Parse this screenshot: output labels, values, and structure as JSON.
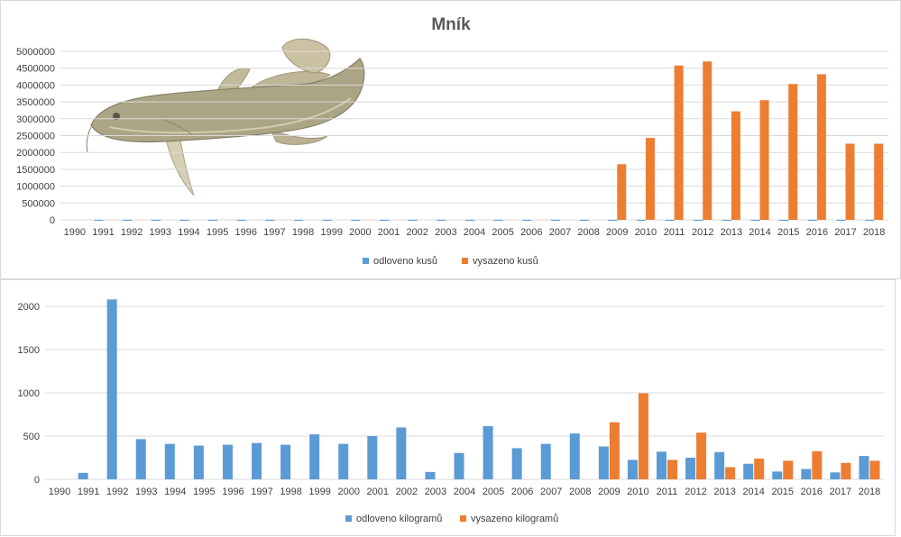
{
  "colors": {
    "odloveno": "#5b9bd5",
    "vysazeno": "#ed7d31",
    "grid": "#d9d9d9",
    "text": "#404040"
  },
  "fish_image": "burbot-fish-illustration",
  "chart_data": [
    {
      "type": "bar",
      "title": "Mník",
      "categories": [
        "1990",
        "1991",
        "1992",
        "1993",
        "1994",
        "1995",
        "1996",
        "1997",
        "1998",
        "1999",
        "2000",
        "2001",
        "2002",
        "2003",
        "2004",
        "2005",
        "2006",
        "2007",
        "2008",
        "2009",
        "2010",
        "2011",
        "2012",
        "2013",
        "2014",
        "2015",
        "2016",
        "2017",
        "2018"
      ],
      "series": [
        {
          "name": "odloveno kusů",
          "values": [
            0,
            15,
            15,
            15,
            15,
            15,
            15,
            15,
            15,
            15,
            15,
            15,
            15,
            15,
            15,
            15,
            15,
            15,
            15,
            15,
            15,
            15,
            15,
            15,
            15,
            15,
            15,
            15,
            15
          ]
        },
        {
          "name": "vysazeno kusů",
          "values": [
            0,
            0,
            0,
            0,
            0,
            0,
            0,
            0,
            0,
            0,
            0,
            0,
            0,
            0,
            0,
            0,
            0,
            0,
            0,
            1650000,
            2430000,
            4580000,
            4700000,
            3220000,
            3550000,
            4030000,
            4320000,
            2260000,
            2260000
          ]
        }
      ],
      "yticks": [
        "0",
        "500000",
        "1000000",
        "1500000",
        "2000000",
        "2500000",
        "3000000",
        "3500000",
        "4000000",
        "4500000",
        "5000000"
      ],
      "ylim": [
        0,
        5000000
      ],
      "grid": true,
      "legend": "bottom"
    },
    {
      "type": "bar",
      "title": "",
      "categories": [
        "1990",
        "1991",
        "1992",
        "1993",
        "1994",
        "1995",
        "1996",
        "1997",
        "1998",
        "1999",
        "2000",
        "2001",
        "2002",
        "2003",
        "2004",
        "2005",
        "2006",
        "2007",
        "2008",
        "2009",
        "2010",
        "2011",
        "2012",
        "2013",
        "2014",
        "2015",
        "2016",
        "2017",
        "2018"
      ],
      "series": [
        {
          "name": "odloveno kilogramů",
          "values": [
            0,
            75,
            2080,
            465,
            410,
            390,
            400,
            420,
            400,
            520,
            410,
            500,
            600,
            85,
            305,
            615,
            360,
            410,
            530,
            380,
            225,
            320,
            250,
            315,
            180,
            90,
            120,
            80,
            270
          ]
        },
        {
          "name": "vysazeno kilogramů",
          "values": [
            0,
            0,
            0,
            0,
            0,
            0,
            0,
            0,
            0,
            0,
            0,
            0,
            0,
            0,
            0,
            0,
            0,
            0,
            0,
            660,
            995,
            225,
            540,
            140,
            240,
            215,
            325,
            190,
            215
          ]
        }
      ],
      "yticks": [
        "0",
        "500",
        "1000",
        "1500",
        "2000"
      ],
      "ylim": [
        0,
        2000
      ],
      "grid": true,
      "legend": "bottom"
    }
  ]
}
